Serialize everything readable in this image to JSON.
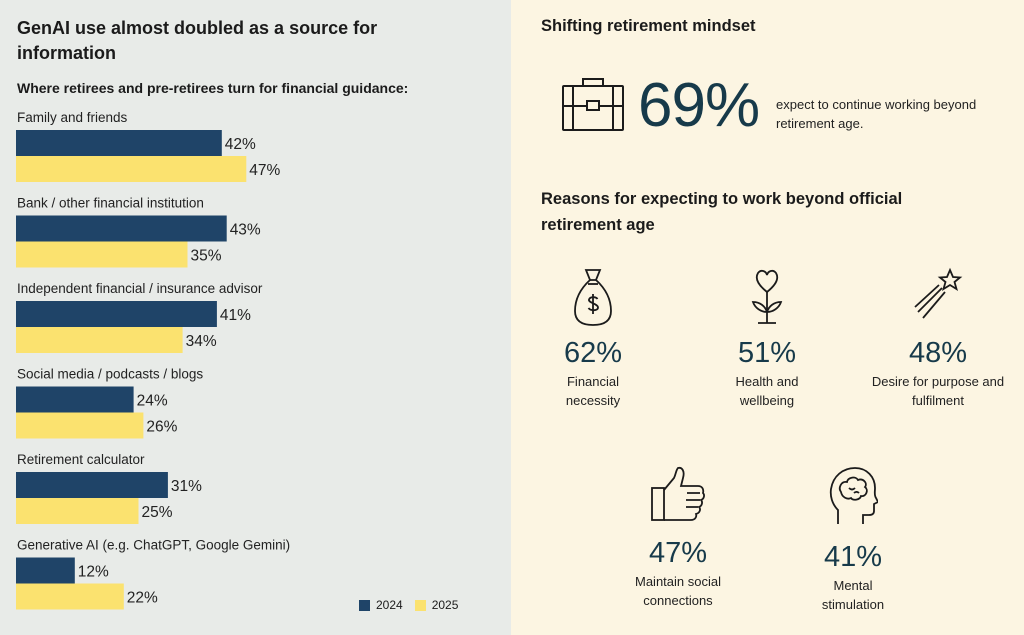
{
  "left": {
    "title": "GenAI use almost doubled as a source for information",
    "subtitle": "Where retirees and pre-retirees turn for financial guidance:"
  },
  "right": {
    "title": "Shifting retirement mindset",
    "headline_pct": "69%",
    "headline_text": "expect to continue working beyond retirement age.",
    "headline_icon": "briefcase-icon",
    "reasons_title": "Reasons for expecting to work beyond official retirement age",
    "reasons": [
      {
        "pct": "62%",
        "label": "Financial necessity",
        "icon": "money-bag-icon"
      },
      {
        "pct": "51%",
        "label": "Health and wellbeing",
        "icon": "flower-heart-icon"
      },
      {
        "pct": "48%",
        "label": "Desire for purpose and fulfilment",
        "icon": "shooting-star-icon"
      },
      {
        "pct": "47%",
        "label": "Maintain social connections",
        "icon": "thumbs-up-icon"
      },
      {
        "pct": "41%",
        "label": "Mental stimulation",
        "icon": "head-brain-icon"
      }
    ]
  },
  "colors": {
    "2024": "#1f4468",
    "2025": "#fbe26f",
    "accent": "#173a4a"
  },
  "chart_data": {
    "type": "bar",
    "orientation": "horizontal",
    "categories": [
      "Family and friends",
      "Bank / other financial institution",
      "Independent financial / insurance advisor",
      "Social media / podcasts / blogs",
      "Retirement calculator",
      "Generative AI (e.g. ChatGPT, Google Gemini)"
    ],
    "series": [
      {
        "name": "2024",
        "values": [
          42,
          43,
          41,
          24,
          31,
          12
        ],
        "labels": [
          "42%",
          "43%",
          "41%",
          "24%",
          "31%",
          "12%"
        ]
      },
      {
        "name": "2025",
        "values": [
          47,
          35,
          34,
          26,
          25,
          22
        ],
        "labels": [
          "47%",
          "35%",
          "34%",
          "26%",
          "25%",
          "22%"
        ]
      }
    ],
    "title": "GenAI use almost doubled as a source for information",
    "xlabel": "",
    "ylabel": "",
    "xlim": [
      0,
      100
    ],
    "grid": false,
    "legend_position": "bottom-right"
  }
}
